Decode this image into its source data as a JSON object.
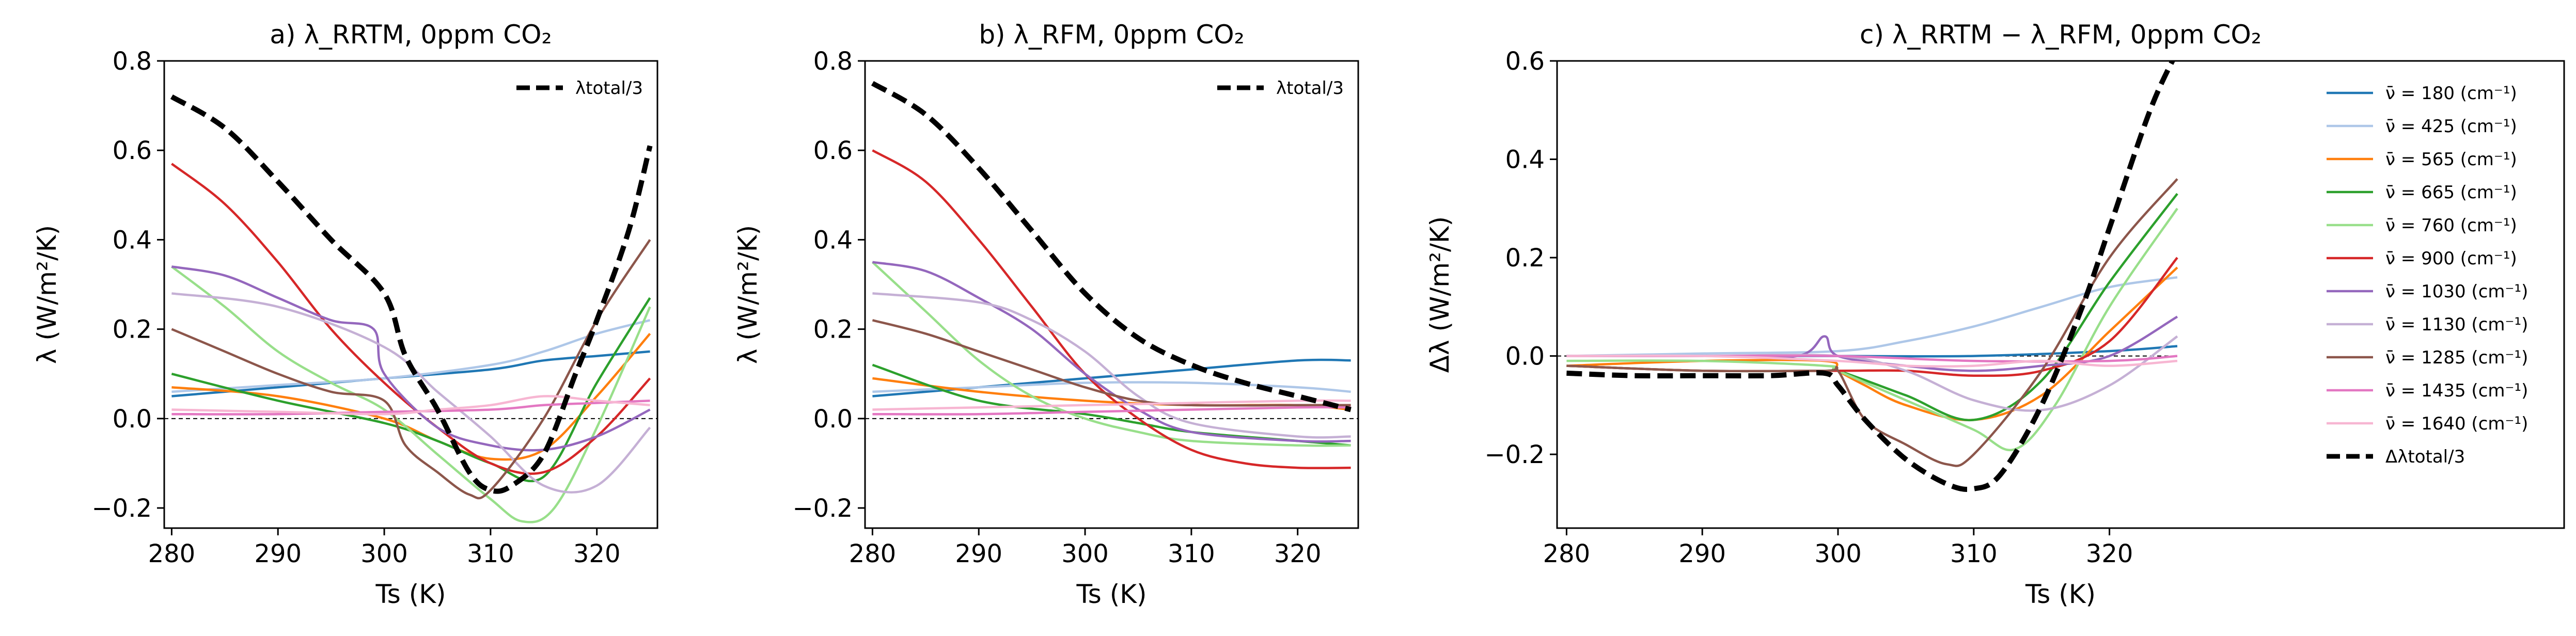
{
  "chart_data": [
    {
      "type": "line",
      "title": "a)    λ_RRTM, 0ppm CO₂",
      "xlabel": "Ts (K)",
      "ylabel": "λ (W/m²/K)",
      "xlim": [
        279.3,
        325.7
      ],
      "ylim": [
        -0.245,
        0.8
      ],
      "xticks": [
        280,
        290,
        300,
        310,
        320
      ],
      "yticks": [
        -0.2,
        0.0,
        0.2,
        0.4,
        0.6,
        0.8
      ],
      "ytick_labels": [
        "−0.2",
        "0.0",
        "0.2",
        "0.4",
        "0.6",
        "0.8"
      ],
      "zero_line": true,
      "legend": {
        "placement": "top-right",
        "entries": [
          "λtotal/3"
        ]
      },
      "series": [
        {
          "name": "ν̄ = 180 (cm⁻¹)",
          "color": "#1f77b4",
          "x": [
            280,
            290,
            300,
            310,
            315,
            320,
            325
          ],
          "y": [
            0.05,
            0.07,
            0.09,
            0.11,
            0.13,
            0.14,
            0.15
          ]
        },
        {
          "name": "ν̄ = 425 (cm⁻¹)",
          "color": "#aec7e8",
          "x": [
            280,
            290,
            300,
            310,
            315,
            320,
            325
          ],
          "y": [
            0.06,
            0.075,
            0.09,
            0.12,
            0.15,
            0.19,
            0.22
          ]
        },
        {
          "name": "ν̄ = 565 (cm⁻¹)",
          "color": "#ff7f0e",
          "x": [
            280,
            290,
            300,
            305,
            310,
            315,
            320,
            325
          ],
          "y": [
            0.07,
            0.05,
            0.0,
            -0.05,
            -0.09,
            -0.07,
            0.05,
            0.19
          ]
        },
        {
          "name": "ν̄ = 665 (cm⁻¹)",
          "color": "#2ca02c",
          "x": [
            280,
            290,
            300,
            305,
            310,
            315,
            320,
            325
          ],
          "y": [
            0.1,
            0.04,
            -0.01,
            -0.05,
            -0.1,
            -0.13,
            0.08,
            0.27
          ]
        },
        {
          "name": "ν̄ = 760 (cm⁻¹)",
          "color": "#98df8a",
          "x": [
            280,
            285,
            290,
            295,
            300,
            305,
            310,
            313,
            316,
            320,
            325
          ],
          "y": [
            0.34,
            0.25,
            0.15,
            0.08,
            0.02,
            -0.08,
            -0.18,
            -0.23,
            -0.2,
            -0.02,
            0.25
          ]
        },
        {
          "name": "ν̄ = 900 (cm⁻¹)",
          "color": "#d62728",
          "x": [
            280,
            285,
            290,
            295,
            300,
            305,
            310,
            315,
            320,
            325
          ],
          "y": [
            0.57,
            0.48,
            0.35,
            0.2,
            0.08,
            -0.02,
            -0.1,
            -0.12,
            -0.04,
            0.09
          ]
        },
        {
          "name": "ν̄ = 1030 (cm⁻¹)",
          "color": "#9467bd",
          "x": [
            280,
            285,
            290,
            295,
            299,
            300,
            305,
            310,
            315,
            320,
            325
          ],
          "y": [
            0.34,
            0.32,
            0.27,
            0.22,
            0.2,
            0.1,
            -0.02,
            -0.06,
            -0.07,
            -0.04,
            0.02
          ]
        },
        {
          "name": "ν̄ = 1130 (cm⁻¹)",
          "color": "#c5b0d5",
          "x": [
            280,
            290,
            300,
            305,
            310,
            315,
            320,
            325
          ],
          "y": [
            0.28,
            0.25,
            0.16,
            0.06,
            -0.04,
            -0.15,
            -0.15,
            -0.02
          ]
        },
        {
          "name": "ν̄ = 1285 (cm⁻¹)",
          "color": "#8c564b",
          "x": [
            280,
            285,
            290,
            295,
            300,
            302,
            305,
            308,
            310,
            315,
            320,
            325
          ],
          "y": [
            0.2,
            0.15,
            0.1,
            0.06,
            0.04,
            -0.06,
            -0.12,
            -0.17,
            -0.16,
            0.0,
            0.22,
            0.4
          ]
        },
        {
          "name": "ν̄ = 1435 (cm⁻¹)",
          "color": "#e377c2",
          "x": [
            280,
            290,
            300,
            310,
            315,
            320,
            325
          ],
          "y": [
            0.01,
            0.01,
            0.015,
            0.02,
            0.03,
            0.035,
            0.04
          ]
        },
        {
          "name": "ν̄ = 1640 (cm⁻¹)",
          "color": "#f7b6d2",
          "x": [
            280,
            290,
            300,
            305,
            310,
            315,
            320,
            325
          ],
          "y": [
            0.02,
            0.015,
            0.01,
            0.02,
            0.03,
            0.05,
            0.04,
            0.03
          ]
        },
        {
          "name": "λtotal/3",
          "color": "#000000",
          "dashed": true,
          "x": [
            280,
            285,
            290,
            295,
            300,
            302,
            305,
            308,
            310,
            312,
            315,
            318,
            320,
            323,
            325
          ],
          "y": [
            0.72,
            0.65,
            0.53,
            0.4,
            0.28,
            0.14,
            0.02,
            -0.12,
            -0.16,
            -0.15,
            -0.08,
            0.1,
            0.22,
            0.42,
            0.61
          ]
        }
      ]
    },
    {
      "type": "line",
      "title": "b)    λ_RFM, 0ppm CO₂",
      "xlabel": "Ts (K)",
      "ylabel": "λ (W/m²/K)",
      "xlim": [
        279.3,
        325.7
      ],
      "ylim": [
        -0.245,
        0.8
      ],
      "xticks": [
        280,
        290,
        300,
        310,
        320
      ],
      "yticks": [
        -0.2,
        0.0,
        0.2,
        0.4,
        0.6,
        0.8
      ],
      "ytick_labels": [
        "−0.2",
        "0.0",
        "0.2",
        "0.4",
        "0.6",
        "0.8"
      ],
      "zero_line": true,
      "legend": {
        "placement": "top-right",
        "entries": [
          "λtotal/3"
        ]
      },
      "series": [
        {
          "name": "ν̄ = 180 (cm⁻¹)",
          "color": "#1f77b4",
          "x": [
            280,
            290,
            300,
            310,
            320,
            325
          ],
          "y": [
            0.05,
            0.07,
            0.09,
            0.11,
            0.13,
            0.13
          ]
        },
        {
          "name": "ν̄ = 425 (cm⁻¹)",
          "color": "#aec7e8",
          "x": [
            280,
            290,
            300,
            310,
            320,
            325
          ],
          "y": [
            0.06,
            0.07,
            0.08,
            0.08,
            0.07,
            0.06
          ]
        },
        {
          "name": "ν̄ = 565 (cm⁻¹)",
          "color": "#ff7f0e",
          "x": [
            280,
            290,
            300,
            310,
            320,
            325
          ],
          "y": [
            0.09,
            0.06,
            0.04,
            0.03,
            0.03,
            0.02
          ]
        },
        {
          "name": "ν̄ = 665 (cm⁻¹)",
          "color": "#2ca02c",
          "x": [
            280,
            290,
            300,
            305,
            310,
            320,
            325
          ],
          "y": [
            0.12,
            0.04,
            0.01,
            -0.01,
            -0.03,
            -0.05,
            -0.06
          ]
        },
        {
          "name": "ν̄ = 760 (cm⁻¹)",
          "color": "#98df8a",
          "x": [
            280,
            285,
            290,
            295,
            300,
            305,
            310,
            320,
            325
          ],
          "y": [
            0.35,
            0.24,
            0.13,
            0.05,
            0.0,
            -0.03,
            -0.05,
            -0.06,
            -0.06
          ]
        },
        {
          "name": "ν̄ = 900 (cm⁻¹)",
          "color": "#d62728",
          "x": [
            280,
            285,
            290,
            295,
            300,
            305,
            310,
            315,
            320,
            325
          ],
          "y": [
            0.6,
            0.53,
            0.4,
            0.25,
            0.1,
            0.0,
            -0.07,
            -0.1,
            -0.11,
            -0.11
          ]
        },
        {
          "name": "ν̄ = 1030 (cm⁻¹)",
          "color": "#9467bd",
          "x": [
            280,
            285,
            290,
            295,
            300,
            305,
            310,
            320,
            325
          ],
          "y": [
            0.35,
            0.33,
            0.27,
            0.2,
            0.1,
            0.02,
            -0.03,
            -0.05,
            -0.05
          ]
        },
        {
          "name": "ν̄ = 1130 (cm⁻¹)",
          "color": "#c5b0d5",
          "x": [
            280,
            290,
            295,
            300,
            305,
            310,
            320,
            325
          ],
          "y": [
            0.28,
            0.26,
            0.22,
            0.15,
            0.05,
            -0.01,
            -0.04,
            -0.04
          ]
        },
        {
          "name": "ν̄ = 1285 (cm⁻¹)",
          "color": "#8c564b",
          "x": [
            280,
            285,
            290,
            295,
            300,
            305,
            310,
            320,
            325
          ],
          "y": [
            0.22,
            0.19,
            0.15,
            0.11,
            0.07,
            0.04,
            0.03,
            0.03,
            0.03
          ]
        },
        {
          "name": "ν̄ = 1435 (cm⁻¹)",
          "color": "#e377c2",
          "x": [
            280,
            290,
            300,
            310,
            320,
            325
          ],
          "y": [
            0.01,
            0.01,
            0.015,
            0.02,
            0.025,
            0.025
          ]
        },
        {
          "name": "ν̄ = 1640 (cm⁻¹)",
          "color": "#f7b6d2",
          "x": [
            280,
            290,
            300,
            310,
            320,
            325
          ],
          "y": [
            0.02,
            0.025,
            0.03,
            0.035,
            0.04,
            0.04
          ]
        },
        {
          "name": "λtotal/3",
          "color": "#000000",
          "dashed": true,
          "x": [
            280,
            285,
            290,
            295,
            300,
            305,
            310,
            315,
            320,
            325
          ],
          "y": [
            0.75,
            0.68,
            0.56,
            0.42,
            0.28,
            0.18,
            0.12,
            0.08,
            0.05,
            0.02
          ]
        }
      ]
    },
    {
      "type": "line",
      "title": "c)    λ_RRTM − λ_RFM, 0ppm CO₂",
      "xlabel": "Ts (K)",
      "ylabel": "Δλ (W/m²/K)",
      "xlim": [
        279.3,
        353.5
      ],
      "ylim": [
        -0.35,
        0.6
      ],
      "xticks": [
        280,
        290,
        300,
        310,
        320
      ],
      "yticks": [
        -0.2,
        0.0,
        0.2,
        0.4,
        0.6
      ],
      "ytick_labels": [
        "−0.2",
        "0.0",
        "0.2",
        "0.4",
        "0.6"
      ],
      "zero_line": true,
      "zero_line_xmax": 325,
      "legend": {
        "placement": "top-right",
        "entries": [
          "ν̄ = 180 (cm⁻¹)",
          "ν̄ = 425 (cm⁻¹)",
          "ν̄ = 565 (cm⁻¹)",
          "ν̄ = 665 (cm⁻¹)",
          "ν̄ = 760 (cm⁻¹)",
          "ν̄ = 900 (cm⁻¹)",
          "ν̄ = 1030 (cm⁻¹)",
          "ν̄ = 1130 (cm⁻¹)",
          "ν̄ = 1285 (cm⁻¹)",
          "ν̄ = 1435 (cm⁻¹)",
          "ν̄ = 1640 (cm⁻¹)",
          "Δλtotal/3"
        ]
      },
      "series": [
        {
          "name": "ν̄ = 180 (cm⁻¹)",
          "color": "#1f77b4",
          "x": [
            280,
            290,
            300,
            310,
            320,
            325
          ],
          "y": [
            0.0,
            0.0,
            0.0,
            0.0,
            0.01,
            0.02
          ]
        },
        {
          "name": "ν̄ = 425 (cm⁻¹)",
          "color": "#aec7e8",
          "x": [
            280,
            290,
            300,
            305,
            310,
            315,
            320,
            325
          ],
          "y": [
            0.0,
            0.005,
            0.01,
            0.03,
            0.06,
            0.1,
            0.14,
            0.16
          ]
        },
        {
          "name": "ν̄ = 565 (cm⁻¹)",
          "color": "#ff7f0e",
          "x": [
            280,
            290,
            299,
            300,
            302,
            305,
            310,
            315,
            320,
            325
          ],
          "y": [
            -0.02,
            -0.01,
            -0.01,
            -0.03,
            -0.06,
            -0.1,
            -0.13,
            -0.08,
            0.05,
            0.18
          ]
        },
        {
          "name": "ν̄ = 665 (cm⁻¹)",
          "color": "#2ca02c",
          "x": [
            280,
            290,
            299,
            300,
            305,
            310,
            315,
            320,
            325
          ],
          "y": [
            -0.02,
            -0.03,
            -0.03,
            -0.03,
            -0.08,
            -0.13,
            -0.05,
            0.15,
            0.33
          ]
        },
        {
          "name": "ν̄ = 760 (cm⁻¹)",
          "color": "#98df8a",
          "x": [
            280,
            290,
            299,
            300,
            305,
            310,
            313,
            316,
            320,
            325
          ],
          "y": [
            -0.01,
            -0.01,
            -0.02,
            -0.03,
            -0.09,
            -0.15,
            -0.19,
            -0.1,
            0.1,
            0.3
          ]
        },
        {
          "name": "ν̄ = 900 (cm⁻¹)",
          "color": "#d62728",
          "x": [
            280,
            290,
            300,
            305,
            310,
            315,
            320,
            325
          ],
          "y": [
            -0.02,
            -0.03,
            -0.03,
            -0.03,
            -0.04,
            -0.03,
            0.03,
            0.2
          ]
        },
        {
          "name": "ν̄ = 1030 (cm⁻¹)",
          "color": "#9467bd",
          "x": [
            280,
            290,
            297,
            299,
            300,
            305,
            310,
            315,
            320,
            325
          ],
          "y": [
            0.0,
            0.0,
            0.0,
            0.04,
            0.0,
            -0.02,
            -0.03,
            -0.02,
            0.0,
            0.08
          ]
        },
        {
          "name": "ν̄ = 1130 (cm⁻¹)",
          "color": "#c5b0d5",
          "x": [
            280,
            290,
            300,
            305,
            310,
            315,
            320,
            325
          ],
          "y": [
            0.0,
            0.0,
            0.0,
            -0.03,
            -0.09,
            -0.11,
            -0.06,
            0.04
          ]
        },
        {
          "name": "ν̄ = 1285 (cm⁻¹)",
          "color": "#8c564b",
          "x": [
            280,
            290,
            299,
            300,
            302,
            305,
            308,
            310,
            315,
            320,
            325
          ],
          "y": [
            -0.02,
            -0.03,
            -0.03,
            -0.03,
            -0.13,
            -0.18,
            -0.22,
            -0.2,
            -0.03,
            0.2,
            0.36
          ]
        },
        {
          "name": "ν̄ = 1435 (cm⁻¹)",
          "color": "#e377c2",
          "x": [
            280,
            290,
            300,
            310,
            320,
            325
          ],
          "y": [
            0.0,
            0.0,
            0.0,
            -0.01,
            -0.01,
            0.0
          ]
        },
        {
          "name": "ν̄ = 1640 (cm⁻¹)",
          "color": "#f7b6d2",
          "x": [
            280,
            290,
            300,
            305,
            310,
            315,
            320,
            325
          ],
          "y": [
            0.0,
            0.0,
            -0.01,
            -0.02,
            -0.02,
            -0.01,
            -0.02,
            -0.01
          ]
        },
        {
          "name": "Δλtotal/3",
          "color": "#000000",
          "dashed": true,
          "x": [
            280,
            285,
            290,
            295,
            299,
            300,
            302,
            305,
            308,
            310,
            312,
            315,
            318,
            320,
            323,
            325
          ],
          "y": [
            -0.035,
            -0.04,
            -0.04,
            -0.04,
            -0.035,
            -0.06,
            -0.13,
            -0.21,
            -0.26,
            -0.27,
            -0.24,
            -0.1,
            0.1,
            0.26,
            0.5,
            0.62
          ]
        }
      ]
    }
  ]
}
